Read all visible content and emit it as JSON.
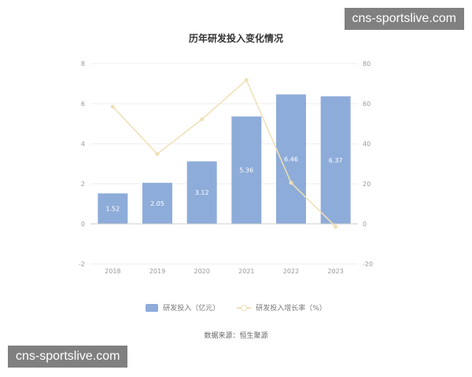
{
  "watermark": "cns-sportslive.com",
  "source": "数据来源：恒生聚源",
  "colors": {
    "bar": "#8eacd9",
    "line": "#efe0b4",
    "grid": "#eeeeee",
    "axis_text": "#999999",
    "title": "#333333"
  },
  "chart_data": {
    "type": "bar",
    "title": "历年研发投入变化情况",
    "categories": [
      "2018",
      "2019",
      "2020",
      "2021",
      "2022",
      "2023"
    ],
    "series": [
      {
        "name": "研发投入（亿元）",
        "type": "bar",
        "axis": "left",
        "values": [
          1.52,
          2.05,
          3.12,
          5.36,
          6.46,
          6.37
        ],
        "labels": [
          "1.52",
          "2.05",
          "3.12",
          "5.36",
          "6.46",
          "6.37"
        ]
      },
      {
        "name": "研发投入增长率（%）",
        "type": "line",
        "axis": "right",
        "values": [
          58.5,
          34.9,
          52.2,
          71.8,
          20.5,
          -1.4
        ]
      }
    ],
    "y_left": {
      "min": -2,
      "max": 8,
      "ticks": [
        "-2",
        "0",
        "2",
        "4",
        "6",
        "8"
      ]
    },
    "y_right": {
      "min": -20,
      "max": 80,
      "ticks": [
        "-20",
        "0",
        "20",
        "40",
        "60",
        "80"
      ]
    },
    "grid": true,
    "legend_position": "bottom"
  }
}
